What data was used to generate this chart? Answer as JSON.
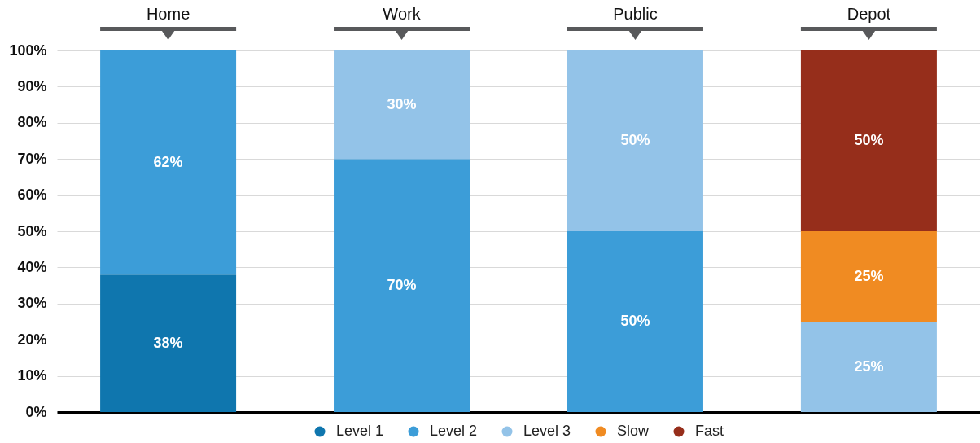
{
  "chart_data": {
    "type": "bar",
    "stacked": true,
    "categories": [
      "Home",
      "Work",
      "Public",
      "Depot"
    ],
    "series": [
      {
        "name": "Level 1",
        "color": "#0f76ae",
        "values": [
          38,
          null,
          null,
          null
        ],
        "value_labels": [
          "38%",
          null,
          null,
          null
        ]
      },
      {
        "name": "Level 2",
        "color": "#3c9dd8",
        "values": [
          62,
          70,
          50,
          null
        ],
        "value_labels": [
          "62%",
          "70%",
          "50%",
          null
        ]
      },
      {
        "name": "Level 3",
        "color": "#93c3e8",
        "values": [
          null,
          30,
          50,
          25
        ],
        "value_labels": [
          null,
          "30%",
          "50%",
          "25%"
        ]
      },
      {
        "name": "Slow",
        "color": "#f08b22",
        "values": [
          null,
          null,
          null,
          25
        ],
        "value_labels": [
          null,
          null,
          null,
          "25%"
        ]
      },
      {
        "name": "Fast",
        "color": "#962e1b",
        "values": [
          null,
          null,
          null,
          50
        ],
        "value_labels": [
          null,
          null,
          null,
          "50%"
        ]
      }
    ],
    "ylim": [
      0,
      100
    ],
    "yticks": [
      {
        "value": 0,
        "label": "0%"
      },
      {
        "value": 10,
        "label": "10%"
      },
      {
        "value": 20,
        "label": "20%"
      },
      {
        "value": 30,
        "label": "30%"
      },
      {
        "value": 40,
        "label": "40%"
      },
      {
        "value": 50,
        "label": "50%"
      },
      {
        "value": 60,
        "label": "60%"
      },
      {
        "value": 70,
        "label": "70%"
      },
      {
        "value": 80,
        "label": "80%"
      },
      {
        "value": 90,
        "label": "90%"
      },
      {
        "value": 100,
        "label": "100%"
      }
    ],
    "grid": "y",
    "legend": "bottom"
  }
}
